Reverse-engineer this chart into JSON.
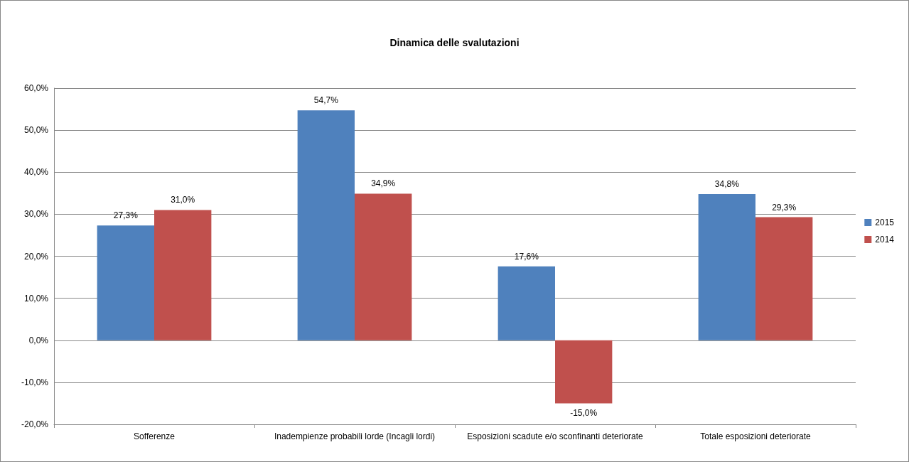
{
  "chart_data": {
    "type": "bar",
    "title": "Dinamica delle svalutazioni",
    "categories": [
      "Sofferenze",
      "Inadempienze probabili lorde (Incagli lordi)",
      "Esposizioni scadute e/o sconfinanti deteriorate",
      "Totale esposizioni deteriorate"
    ],
    "series": [
      {
        "name": "2015",
        "color": "#4f81bd",
        "values": [
          27.3,
          54.7,
          17.6,
          34.8
        ],
        "value_labels": [
          "27,3%",
          "54,7%",
          "17,6%",
          "34,8%"
        ]
      },
      {
        "name": "2014",
        "color": "#c0504d",
        "values": [
          31.0,
          34.9,
          -15.0,
          29.3
        ],
        "value_labels": [
          "31,0%",
          "34,9%",
          "-15,0%",
          "29,3%"
        ]
      }
    ],
    "ylim": [
      -20,
      60
    ],
    "yticks": [
      {
        "value": -20,
        "label": "-20,0%"
      },
      {
        "value": -10,
        "label": "-10,0%"
      },
      {
        "value": 0,
        "label": "0,0%"
      },
      {
        "value": 10,
        "label": "10,0%"
      },
      {
        "value": 20,
        "label": "20,0%"
      },
      {
        "value": 30,
        "label": "30,0%"
      },
      {
        "value": 40,
        "label": "40,0%"
      },
      {
        "value": 50,
        "label": "50,0%"
      },
      {
        "value": 60,
        "label": "60,0%"
      }
    ],
    "grid": "y",
    "legend": "right"
  }
}
